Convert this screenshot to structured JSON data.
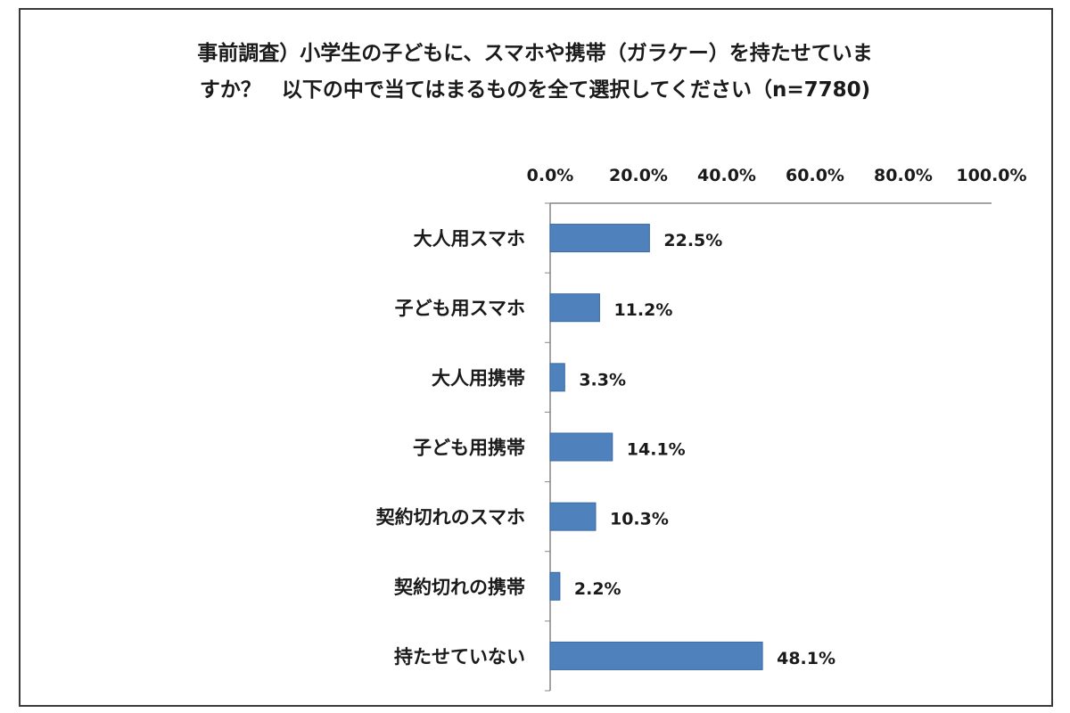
{
  "chart_data": {
    "type": "bar",
    "orientation": "horizontal",
    "title": [
      "事前調査）小学生の子どもに、スマホや携帯（ガラケー）を持たせていま",
      "すか？　以下の中で当てはまるものを全て選択してください（n=7780)"
    ],
    "categories": [
      "大人用スマホ",
      "子ども用スマホ",
      "大人用携帯",
      "子ども用携帯",
      "契約切れのスマホ",
      "契約切れの携帯",
      "持たせていない"
    ],
    "values": [
      22.5,
      11.2,
      3.3,
      14.1,
      10.3,
      2.2,
      48.1
    ],
    "data_labels": [
      "22.5%",
      "11.2%",
      "3.3%",
      "14.1%",
      "10.3%",
      "2.2%",
      "48.1%"
    ],
    "xlim": [
      0,
      100
    ],
    "xticks": [
      0,
      20,
      40,
      60,
      80,
      100
    ],
    "xtick_labels": [
      "0.0%",
      "20.0%",
      "40.0%",
      "60.0%",
      "80.0%",
      "100.0%"
    ],
    "axis_position": "top",
    "grid": false,
    "legend": "none",
    "bar_color": "#4f81bd"
  }
}
